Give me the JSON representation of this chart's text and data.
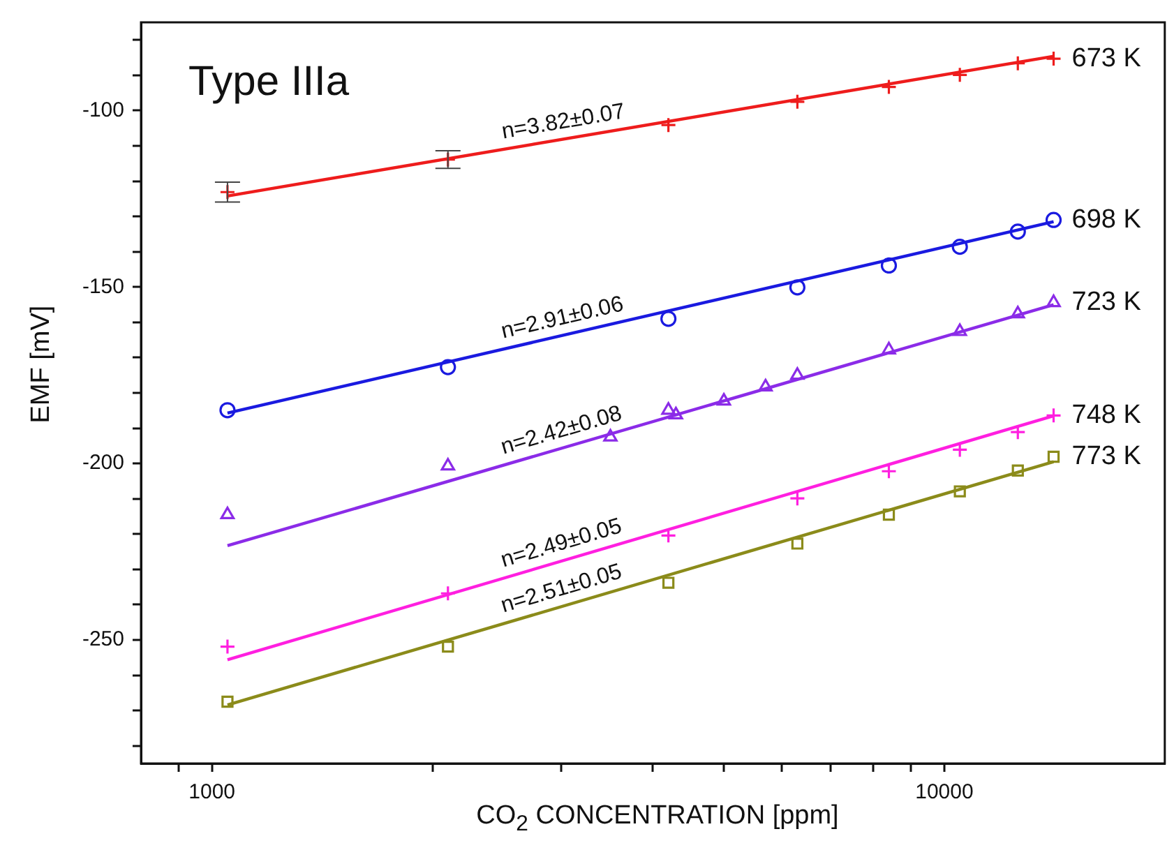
{
  "chart_data": {
    "type": "scatter",
    "title": "Type IIIa",
    "xlabel": "CO$_{2}$ CONCENTRATION [ppm]",
    "ylabel": "EMF [mV]",
    "log": "x",
    "grid": false,
    "legend": false,
    "xlim": [
      800,
      20000
    ],
    "ylim": [
      -285,
      -75
    ],
    "xticks": [
      {
        "value": 900,
        "label": null
      },
      1000,
      {
        "value": 2000,
        "label": null
      },
      {
        "value": 3000,
        "label": null
      },
      {
        "value": 4000,
        "label": null
      },
      {
        "value": 5000,
        "label": null
      },
      {
        "value": 6000,
        "label": null
      },
      {
        "value": 7000,
        "label": null
      },
      {
        "value": 8000,
        "label": null
      },
      {
        "value": 9000,
        "label": null
      },
      10000
    ],
    "yticks": [
      {
        "value": -80,
        "label": null
      },
      {
        "value": -90,
        "label": null
      },
      -100,
      {
        "value": -110,
        "label": null
      },
      {
        "value": -120,
        "label": null
      },
      {
        "value": -130,
        "label": null
      },
      {
        "value": -140,
        "label": null
      },
      -150,
      {
        "value": -160,
        "label": null
      },
      {
        "value": -170,
        "label": null
      },
      {
        "value": -180,
        "label": null
      },
      {
        "value": -190,
        "label": null
      },
      -200,
      {
        "value": -210,
        "label": null
      },
      {
        "value": -220,
        "label": null
      },
      {
        "value": -230,
        "label": null
      },
      {
        "value": -240,
        "label": null
      },
      -250,
      {
        "value": -260,
        "label": null
      },
      {
        "value": -270,
        "label": null
      },
      {
        "value": -280,
        "label": null
      }
    ],
    "series": [
      {
        "type": "line",
        "color": "#ee1c1c",
        "x": [
          1050,
          14100
        ],
        "values": [
          -124.2,
          -84.6
        ],
        "marker": "none"
      },
      {
        "type": "line",
        "color": "#1a1ae0",
        "x": [
          1050,
          14100
        ],
        "values": [
          -185.7,
          -131.5
        ],
        "marker": "none"
      },
      {
        "type": "line",
        "color": "#8b2be8",
        "x": [
          1050,
          14100
        ],
        "values": [
          -223.3,
          -155
        ],
        "marker": "none"
      },
      {
        "type": "line",
        "color": "#ff1fe0",
        "x": [
          1050,
          14100
        ],
        "values": [
          -255.6,
          -186.5
        ],
        "marker": "none"
      },
      {
        "type": "line",
        "color": "#8b8b1a",
        "x": [
          1050,
          14100
        ],
        "values": [
          -268.4,
          -199.5
        ],
        "marker": "none"
      },
      {
        "type": "scatter",
        "name": "673 K",
        "color": "#ee1c1c",
        "marker": "cross",
        "x": [
          1050,
          2100,
          4200,
          6300,
          8400,
          10500,
          12600,
          14100
        ],
        "values": [
          -123.1,
          -113.9,
          -104.1,
          -97.5,
          -93.3,
          -89.9,
          -86.6,
          -85.3
        ],
        "errors": [
          2.8,
          2.5,
          null,
          null,
          null,
          null,
          null,
          null
        ]
      },
      {
        "type": "scatter",
        "name": "698 K",
        "color": "#1a1ae0",
        "marker": "circle",
        "x": [
          1050,
          2100,
          4200,
          6300,
          8400,
          10500,
          12600,
          14100
        ],
        "values": [
          -184.9,
          -172.7,
          -159,
          -150.1,
          -143.9,
          -138.6,
          -134.3,
          -131
        ]
      },
      {
        "type": "scatter",
        "name": "723 K",
        "color": "#8b2be8",
        "marker": "triangle",
        "x": [
          1050,
          2100,
          3500,
          4200,
          4300,
          5000,
          5700,
          6300,
          8400,
          10500,
          12600,
          14100
        ],
        "values": [
          -214.5,
          -200.7,
          -192.5,
          -184.9,
          -186.2,
          -182.3,
          -178.3,
          -175,
          -167.8,
          -162.6,
          -157.6,
          -154.4
        ]
      },
      {
        "type": "scatter",
        "name": "748 K",
        "color": "#ff1fe0",
        "marker": "cross",
        "x": [
          1050,
          2100,
          4200,
          6300,
          8400,
          10500,
          12600,
          14100
        ],
        "values": [
          -251.9,
          -236.8,
          -220.4,
          -209.9,
          -202.2,
          -196.1,
          -191.1,
          -186.4
        ]
      },
      {
        "type": "scatter",
        "name": "773 K",
        "color": "#8b8b1a",
        "marker": "square",
        "x": [
          1050,
          2100,
          4200,
          6300,
          8400,
          10500,
          12600,
          14100
        ],
        "values": [
          -267.5,
          -251.9,
          -233.8,
          -222.7,
          -214.5,
          -207.9,
          -202,
          -198.1
        ]
      }
    ],
    "annotations": [
      "n=3.82±0.07",
      "n=2.91±0.06",
      "n=2.42±0.08",
      "n=2.49±0.05",
      "n=2.51±0.05"
    ]
  }
}
